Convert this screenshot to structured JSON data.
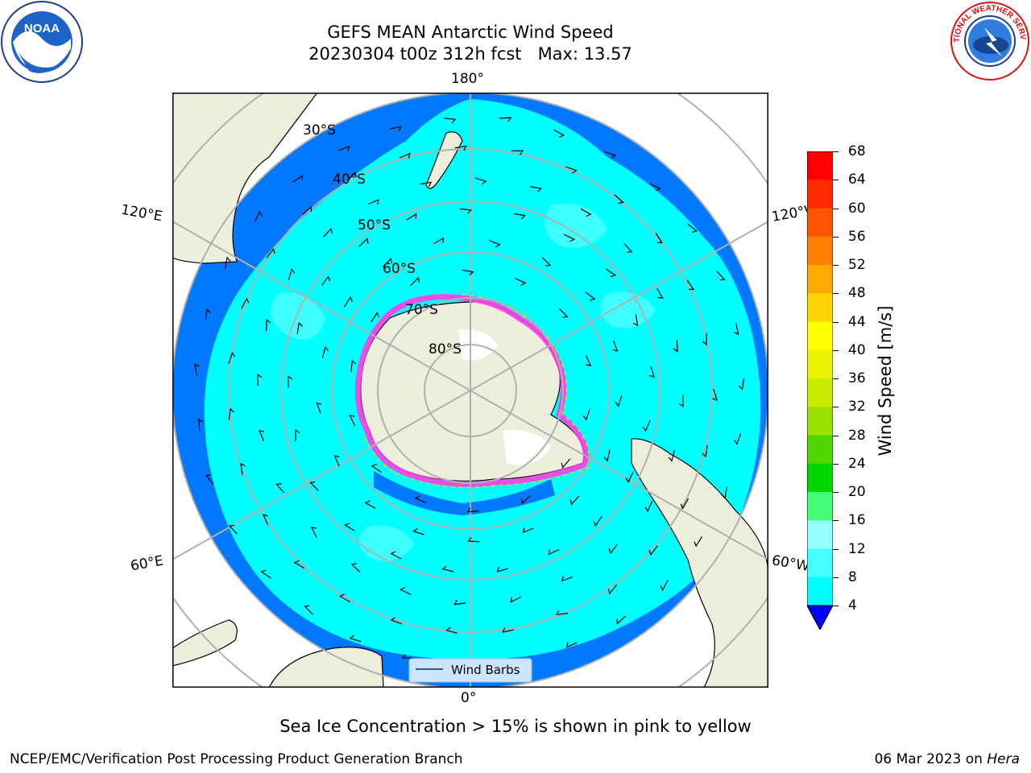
{
  "title_line1": "GEFS MEAN Antarctic Wind Speed",
  "title_line2": "20230304 t00z 312h fcst   Max: 13.57",
  "longitude_labels": {
    "top": "180°",
    "bottom": "0°",
    "upper_left": "120°E",
    "upper_right": "120°W",
    "lower_left": "60°E",
    "lower_right": "60°W"
  },
  "latitude_labels": [
    "30°S",
    "40°S",
    "50°S",
    "60°S",
    "70°S",
    "80°S"
  ],
  "legend": {
    "wind_barbs": "Wind Barbs"
  },
  "colorbar": {
    "label": "Wind Speed [m/s]",
    "ticks": [
      "68",
      "64",
      "60",
      "56",
      "52",
      "48",
      "44",
      "40",
      "36",
      "32",
      "28",
      "24",
      "20",
      "16",
      "12",
      "8",
      "4"
    ],
    "colors": [
      "#ff0000",
      "#ff2a00",
      "#ff5500",
      "#ff8000",
      "#ffaa00",
      "#ffd400",
      "#ffff00",
      "#ecf500",
      "#c8eb00",
      "#9be100",
      "#50d700",
      "#00d700",
      "#46ff78",
      "#96ffff",
      "#46ffff",
      "#00ffff",
      "#0078ff"
    ],
    "extend_color": "#0000ff"
  },
  "caption": "Sea Ice Concentration > 15% is shown in pink to yellow",
  "footer_left": "NCEP/EMC/Verification Post Processing Product Generation Branch",
  "footer_date": "06 Mar 2023 on ",
  "footer_machine": "Hera",
  "logos": {
    "left": "NOAA",
    "right": "NATIONAL WEATHER SERVICE"
  }
}
